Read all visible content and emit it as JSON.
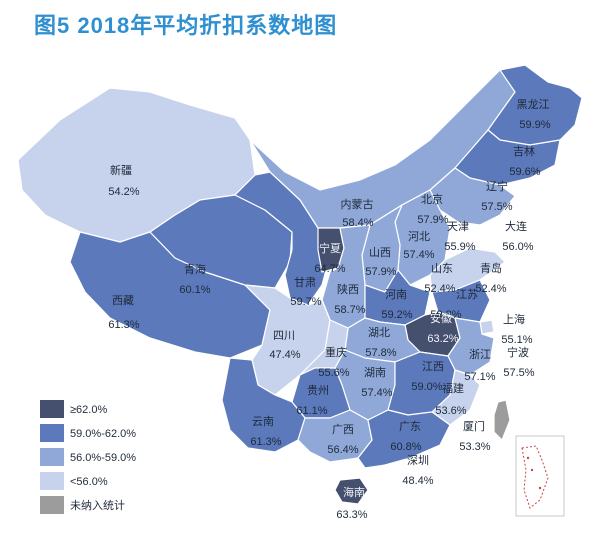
{
  "title": "图5 2018年平均折扣系数地图",
  "colors": {
    "tier1": "#44506e",
    "tier2": "#5b79bb",
    "tier3": "#8fa8d8",
    "tier4": "#c7d3ec",
    "na": "#9c9c9c",
    "border": "#ffffff"
  },
  "legend": [
    {
      "label": "≥62.0%",
      "color": "#44506e"
    },
    {
      "label": "59.0%-62.0%",
      "color": "#5b79bb"
    },
    {
      "label": "56.0%-59.0%",
      "color": "#8fa8d8"
    },
    {
      "label": "<56.0%",
      "color": "#c7d3ec"
    },
    {
      "label": "未纳入统计",
      "color": "#9c9c9c"
    }
  ],
  "regions": {
    "heilongjiang": {
      "name": "黑龙江",
      "value": "59.9%"
    },
    "jilin": {
      "name": "吉林",
      "value": "59.6%"
    },
    "liaoning": {
      "name": "辽宁",
      "value": "57.5%"
    },
    "xinjiang": {
      "name": "新疆",
      "value": "54.2%"
    },
    "neimenggu": {
      "name": "内蒙古",
      "value": "58.4%"
    },
    "beijing": {
      "name": "北京",
      "value": "57.9%"
    },
    "tianjin": {
      "name": "天津",
      "value": "55.9%"
    },
    "dalian": {
      "name": "大连",
      "value": "56.0%"
    },
    "hebei": {
      "name": "河北",
      "value": "57.4%"
    },
    "shanxi": {
      "name": "山西",
      "value": "57.9%"
    },
    "shandong": {
      "name": "山东",
      "value": "52.4%"
    },
    "qingdao": {
      "name": "青岛",
      "value": "52.4%"
    },
    "ningxia": {
      "name": "宁夏",
      "value": "64.7%"
    },
    "qinghai": {
      "name": "青海",
      "value": "60.1%"
    },
    "gansu": {
      "name": "甘肃",
      "value": "59.7%"
    },
    "shaanxi": {
      "name": "陕西",
      "value": "58.7%"
    },
    "henan": {
      "name": "河南",
      "value": "59.2%"
    },
    "jiangsu": {
      "name": "江苏",
      "value": "59.8%"
    },
    "anhui": {
      "name": "安徽",
      "value": "63.2%"
    },
    "shanghai": {
      "name": "上海",
      "value": "55.1%"
    },
    "xizang": {
      "name": "西藏",
      "value": "61.3%"
    },
    "sichuan": {
      "name": "四川",
      "value": "47.4%"
    },
    "hubei": {
      "name": "湖北",
      "value": "57.8%"
    },
    "chongqing": {
      "name": "重庆",
      "value": "55.6%"
    },
    "zhejiang": {
      "name": "浙江",
      "value": "57.1%"
    },
    "ningbo": {
      "name": "宁波",
      "value": "57.5%"
    },
    "hunan": {
      "name": "湖南",
      "value": "57.4%"
    },
    "jiangxi": {
      "name": "江西",
      "value": "59.0%"
    },
    "guizhou": {
      "name": "贵州",
      "value": "61.1%"
    },
    "fujian": {
      "name": "福建",
      "value": "53.6%"
    },
    "xiamen": {
      "name": "厦门",
      "value": "53.3%"
    },
    "yunnan": {
      "name": "云南",
      "value": "61.3%"
    },
    "guangxi": {
      "name": "广西",
      "value": "56.4%"
    },
    "guangdong": {
      "name": "广东",
      "value": "60.8%"
    },
    "shenzhen": {
      "name": "深圳",
      "value": "48.4%"
    },
    "hainan": {
      "name": "海南",
      "value": "63.3%"
    }
  }
}
